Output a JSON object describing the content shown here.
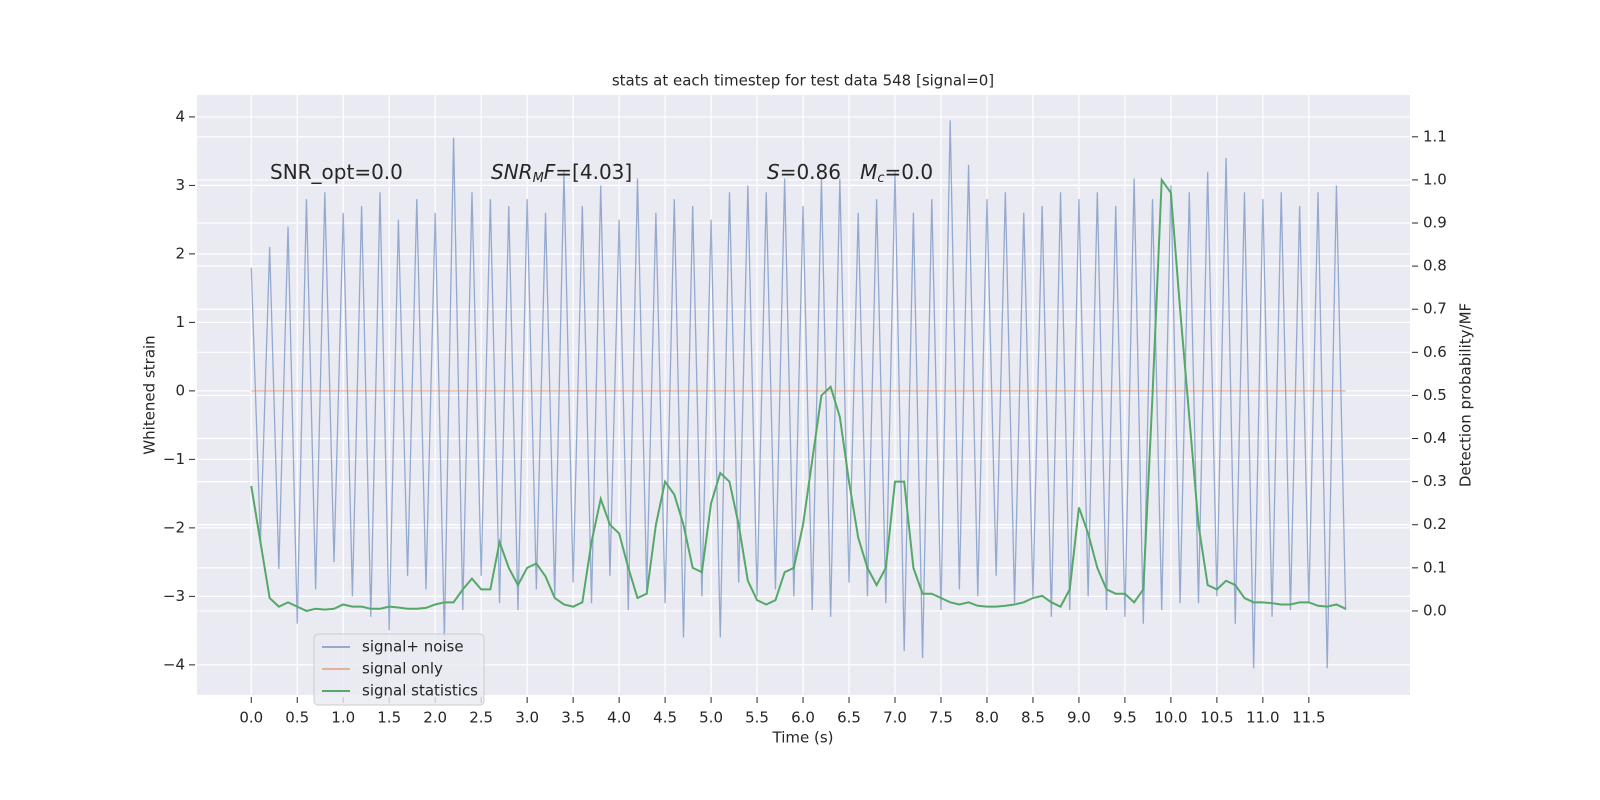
{
  "chart_data": {
    "type": "line",
    "title": "stats at each timestep for test data 548 [signal=0]",
    "x_label": "Time (s)",
    "y_label": "Whitened strain",
    "y2_label": "Detection probability/MF",
    "annotations": [
      {
        "parts": [
          {
            "t": "SNR_opt=0.0",
            "style": "normal"
          }
        ]
      },
      {
        "parts": [
          {
            "t": "SNR",
            "style": "italic"
          },
          {
            "t": "M",
            "style": "sub"
          },
          {
            "t": "F",
            "style": "italic"
          },
          {
            "t": "=[4.03]",
            "style": "normal"
          }
        ]
      },
      {
        "parts": [
          {
            "t": "S",
            "style": "italic"
          },
          {
            "t": "=0.86   ",
            "style": "normal"
          },
          {
            "t": "M",
            "style": "italic"
          },
          {
            "t": "c",
            "style": "sub"
          },
          {
            "t": "=0.0",
            "style": "normal"
          }
        ]
      }
    ],
    "x": [
      0,
      0.1,
      0.2,
      0.3,
      0.4,
      0.5,
      0.6,
      0.7,
      0.8,
      0.9,
      1,
      1.1,
      1.2,
      1.3,
      1.4,
      1.5,
      1.6,
      1.7,
      1.8,
      1.9,
      2,
      2.1,
      2.2,
      2.3,
      2.4,
      2.5,
      2.6,
      2.7,
      2.8,
      2.9,
      3,
      3.1,
      3.2,
      3.3,
      3.4,
      3.5,
      3.6,
      3.7,
      3.8,
      3.9,
      4,
      4.1,
      4.2,
      4.3,
      4.4,
      4.5,
      4.6,
      4.7,
      4.8,
      4.9,
      5,
      5.1,
      5.2,
      5.3,
      5.4,
      5.5,
      5.6,
      5.7,
      5.8,
      5.9,
      6,
      6.1,
      6.2,
      6.3,
      6.4,
      6.5,
      6.6,
      6.7,
      6.8,
      6.9,
      7,
      7.1,
      7.2,
      7.3,
      7.4,
      7.5,
      7.6,
      7.7,
      7.8,
      7.9,
      8,
      8.1,
      8.2,
      8.3,
      8.4,
      8.5,
      8.6,
      8.7,
      8.8,
      8.9,
      9,
      9.1,
      9.2,
      9.3,
      9.4,
      9.5,
      9.6,
      9.7,
      9.8,
      9.9,
      10,
      10.1,
      10.2,
      10.3,
      10.4,
      10.5,
      10.6,
      10.7,
      10.8,
      10.9,
      11,
      11.1,
      11.2,
      11.3,
      11.4,
      11.5,
      11.6,
      11.7,
      11.8,
      11.9
    ],
    "series": [
      {
        "name": "signal+ noise",
        "color": "#4c72b0",
        "opacity": 0.55,
        "values": [
          1.8,
          -2.2,
          2.1,
          -2.6,
          2.4,
          -3.4,
          2.8,
          -2.9,
          2.9,
          -2.5,
          2.6,
          -3.0,
          2.7,
          -3.3,
          2.9,
          -3.5,
          2.5,
          -2.7,
          2.8,
          -2.9,
          2.6,
          -3.6,
          3.7,
          -3.2,
          2.9,
          -2.7,
          2.8,
          -3.1,
          2.7,
          -3.2,
          2.8,
          -2.9,
          2.6,
          -3.0,
          3.2,
          -2.8,
          2.7,
          -3.1,
          3.0,
          -2.7,
          2.5,
          -3.2,
          3.1,
          -2.9,
          2.6,
          -3.1,
          2.8,
          -3.6,
          2.7,
          -3.0,
          2.5,
          -3.6,
          2.9,
          -2.8,
          3.0,
          -3.0,
          2.9,
          -2.9,
          3.1,
          -3.0,
          2.7,
          -3.2,
          3.1,
          -3.3,
          3.1,
          -2.8,
          2.6,
          -3.0,
          2.8,
          -3.1,
          3.2,
          -3.8,
          2.6,
          -3.9,
          2.8,
          -3.2,
          3.95,
          -2.9,
          3.3,
          -3.0,
          2.8,
          -2.7,
          2.9,
          -3.1,
          2.6,
          -3.0,
          2.7,
          -3.3,
          2.9,
          -3.2,
          2.8,
          -3.0,
          2.9,
          -3.2,
          2.7,
          -3.3,
          3.1,
          -3.4,
          2.8,
          -3.2,
          3.0,
          -3.1,
          2.9,
          -3.1,
          3.2,
          -3.0,
          3.4,
          -3.4,
          2.9,
          -4.05,
          2.8,
          -3.3,
          2.9,
          -3.2,
          2.7,
          -3.1,
          2.9,
          -4.05,
          3.0,
          -3.2
        ]
      },
      {
        "name": "signal only",
        "color": "#dd8452",
        "opacity": 0.55,
        "values": [
          0,
          0,
          0,
          0,
          0,
          0,
          0,
          0,
          0,
          0,
          0,
          0,
          0,
          0,
          0,
          0,
          0,
          0,
          0,
          0,
          0,
          0,
          0,
          0,
          0,
          0,
          0,
          0,
          0,
          0,
          0,
          0,
          0,
          0,
          0,
          0,
          0,
          0,
          0,
          0,
          0,
          0,
          0,
          0,
          0,
          0,
          0,
          0,
          0,
          0,
          0,
          0,
          0,
          0,
          0,
          0,
          0,
          0,
          0,
          0,
          0,
          0,
          0,
          0,
          0,
          0,
          0,
          0,
          0,
          0,
          0,
          0,
          0,
          0,
          0,
          0,
          0,
          0,
          0,
          0,
          0,
          0,
          0,
          0,
          0,
          0,
          0,
          0,
          0,
          0,
          0,
          0,
          0,
          0,
          0,
          0,
          0,
          0,
          0,
          0,
          0,
          0,
          0,
          0,
          0,
          0,
          0,
          0,
          0,
          0,
          0,
          0,
          0,
          0,
          0,
          0,
          0,
          0,
          0,
          0
        ]
      },
      {
        "name": "signal statistics",
        "color": "#55a868",
        "opacity": 1,
        "axis": "y2",
        "values": [
          0.29,
          0.16,
          0.03,
          0.01,
          0.02,
          0.01,
          0.0,
          0.005,
          0.003,
          0.005,
          0.015,
          0.01,
          0.01,
          0.005,
          0.005,
          0.01,
          0.008,
          0.005,
          0.005,
          0.007,
          0.015,
          0.02,
          0.02,
          0.05,
          0.075,
          0.05,
          0.05,
          0.16,
          0.1,
          0.06,
          0.1,
          0.11,
          0.08,
          0.03,
          0.015,
          0.01,
          0.02,
          0.16,
          0.26,
          0.2,
          0.18,
          0.1,
          0.03,
          0.04,
          0.2,
          0.3,
          0.27,
          0.2,
          0.1,
          0.09,
          0.25,
          0.32,
          0.3,
          0.2,
          0.07,
          0.025,
          0.015,
          0.025,
          0.09,
          0.1,
          0.2,
          0.35,
          0.5,
          0.52,
          0.45,
          0.3,
          0.17,
          0.1,
          0.06,
          0.1,
          0.3,
          0.3,
          0.1,
          0.04,
          0.04,
          0.03,
          0.02,
          0.015,
          0.02,
          0.012,
          0.01,
          0.01,
          0.012,
          0.015,
          0.02,
          0.03,
          0.035,
          0.02,
          0.01,
          0.05,
          0.24,
          0.18,
          0.1,
          0.05,
          0.04,
          0.04,
          0.02,
          0.05,
          0.5,
          1.0,
          0.97,
          0.7,
          0.45,
          0.2,
          0.06,
          0.05,
          0.07,
          0.06,
          0.03,
          0.02,
          0.02,
          0.018,
          0.015,
          0.015,
          0.02,
          0.02,
          0.012,
          0.01,
          0.015,
          0.005
        ]
      }
    ],
    "xlim": [
      -0.59,
      12.6
    ],
    "ylim": [
      -4.44,
      4.32
    ],
    "y2lim": [
      -0.195,
      1.197
    ],
    "xticks": [
      {
        "value": 0,
        "label": "0.0"
      },
      0.5,
      {
        "value": 1,
        "label": "1.0"
      },
      1.5,
      {
        "value": 2,
        "label": "2.0"
      },
      2.5,
      {
        "value": 3,
        "label": "3.0"
      },
      3.5,
      {
        "value": 4,
        "label": "4.0"
      },
      4.5,
      {
        "value": 5,
        "label": "5.0"
      },
      5.5,
      {
        "value": 6,
        "label": "6.0"
      },
      6.5,
      {
        "value": 7,
        "label": "7.0"
      },
      7.5,
      {
        "value": 8,
        "label": "8.0"
      },
      8.5,
      {
        "value": 9,
        "label": "9.0"
      },
      9.5,
      {
        "value": 10,
        "label": "10.0"
      },
      10.5,
      {
        "value": 11,
        "label": "11.0"
      },
      11.5
    ],
    "yticks": [
      {
        "value": -4,
        "label": "−4"
      },
      {
        "value": -3,
        "label": "−3"
      },
      {
        "value": -2,
        "label": "−2"
      },
      {
        "value": -1,
        "label": "−1"
      },
      0,
      1,
      2,
      3,
      4
    ],
    "y2ticks": [
      {
        "value": 0,
        "label": "0.0"
      },
      0.1,
      0.2,
      0.3,
      0.4,
      0.5,
      0.6,
      0.7,
      0.8,
      0.9,
      {
        "value": 1,
        "label": "1.0"
      },
      1.1
    ],
    "grid": true,
    "legend": "lower left"
  }
}
